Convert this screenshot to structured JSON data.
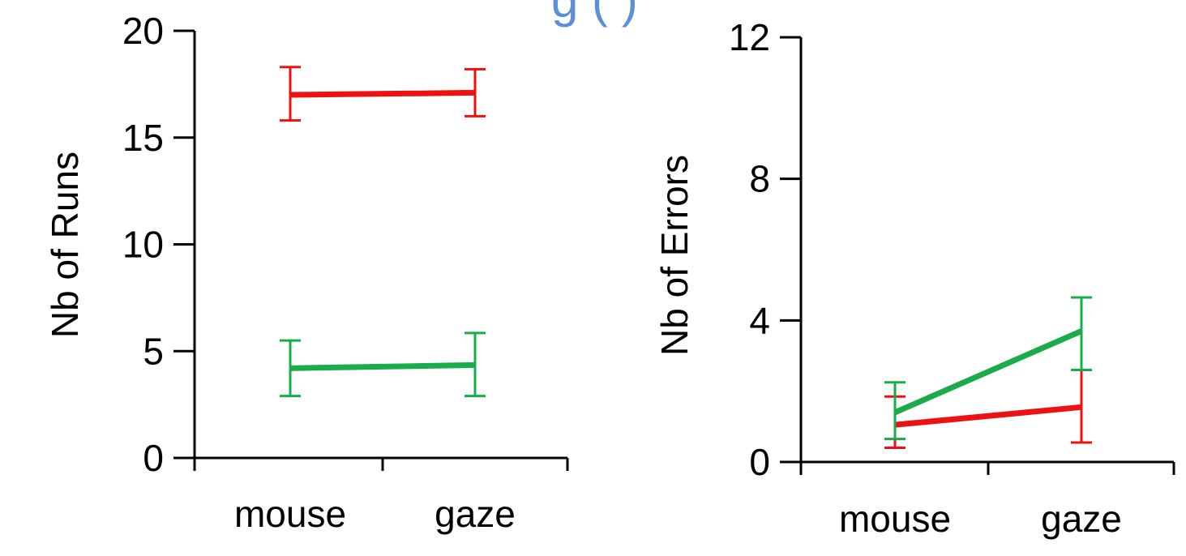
{
  "header_fragment": {
    "text": "g    (    )",
    "color": "#5b8fd9"
  },
  "colors": {
    "red": "#ee1111",
    "green": "#1aab4b",
    "axis": "#000000"
  },
  "chart_data": [
    {
      "type": "line",
      "title": "",
      "xlabel": "",
      "ylabel": "Nb of Runs",
      "categories": [
        "mouse",
        "gaze"
      ],
      "ylim": [
        0,
        20
      ],
      "yticks": [
        0,
        5,
        10,
        15,
        20
      ],
      "grid": false,
      "legend": "none",
      "series": [
        {
          "color": "red",
          "values": [
            17.0,
            17.1
          ],
          "error_low": [
            15.8,
            16.0
          ],
          "error_high": [
            18.3,
            18.2
          ]
        },
        {
          "color": "green",
          "values": [
            4.2,
            4.35
          ],
          "error_low": [
            2.9,
            2.9
          ],
          "error_high": [
            5.5,
            5.85
          ]
        }
      ]
    },
    {
      "type": "line",
      "title": "",
      "xlabel": "",
      "ylabel": "Nb of Errors",
      "categories": [
        "mouse",
        "gaze"
      ],
      "ylim": [
        0,
        12
      ],
      "yticks": [
        0,
        4,
        8,
        12
      ],
      "grid": false,
      "legend": "none",
      "series": [
        {
          "color": "red",
          "values": [
            1.05,
            1.55
          ],
          "error_low": [
            0.4,
            0.55
          ],
          "error_high": [
            1.85,
            2.6
          ]
        },
        {
          "color": "green",
          "values": [
            1.4,
            3.7
          ],
          "error_low": [
            0.65,
            2.6
          ],
          "error_high": [
            2.25,
            4.65
          ]
        }
      ]
    }
  ]
}
